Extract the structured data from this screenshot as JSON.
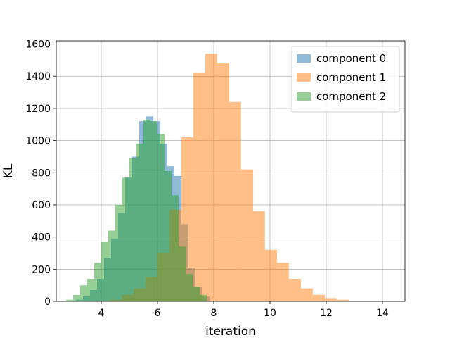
{
  "chart_data": {
    "type": "bar",
    "subtype": "overlapping-histogram",
    "xlabel": "iteration",
    "ylabel": "KL",
    "xlim": [
      2.4,
      14.8
    ],
    "ylim": [
      0,
      1620
    ],
    "xticks": [
      4,
      6,
      8,
      10,
      12,
      14
    ],
    "yticks": [
      0,
      200,
      400,
      600,
      800,
      1000,
      1200,
      1400,
      1600
    ],
    "grid": true,
    "legend_position": "top-right",
    "bar_opacity": 0.5,
    "series": [
      {
        "name": "component 0",
        "color": "#1f77b4",
        "bin_edges": [
          3.1,
          3.35,
          3.6,
          3.85,
          4.1,
          4.35,
          4.6,
          4.85,
          5.1,
          5.35,
          5.6,
          5.85,
          6.1,
          6.35,
          6.6,
          6.85,
          7.1,
          7.35,
          7.6,
          7.85
        ],
        "values": [
          10,
          30,
          70,
          140,
          270,
          390,
          550,
          770,
          900,
          1120,
          1150,
          1120,
          980,
          840,
          780,
          480,
          210,
          90,
          30
        ]
      },
      {
        "name": "component 1",
        "color": "#ff7f0e",
        "bin_edges": [
          4.3,
          4.73,
          5.15,
          5.58,
          6.0,
          6.42,
          6.85,
          7.27,
          7.7,
          8.12,
          8.55,
          8.97,
          9.4,
          9.82,
          10.25,
          10.67,
          11.1,
          11.52,
          11.95,
          12.37,
          12.8
        ],
        "values": [
          10,
          40,
          80,
          150,
          300,
          570,
          1020,
          1420,
          1540,
          1480,
          1240,
          820,
          560,
          320,
          240,
          140,
          80,
          40,
          20,
          10
        ]
      },
      {
        "name": "component 2",
        "color": "#2ca02c",
        "bin_edges": [
          2.75,
          3.0,
          3.25,
          3.5,
          3.75,
          4.0,
          4.25,
          4.5,
          4.75,
          5.0,
          5.25,
          5.5,
          5.75,
          6.0,
          6.25,
          6.5,
          6.75,
          7.0,
          7.25,
          7.5,
          7.75
        ],
        "values": [
          10,
          40,
          100,
          140,
          240,
          370,
          440,
          600,
          770,
          890,
          980,
          1130,
          1120,
          1040,
          810,
          660,
          340,
          170,
          90,
          40
        ]
      }
    ]
  }
}
